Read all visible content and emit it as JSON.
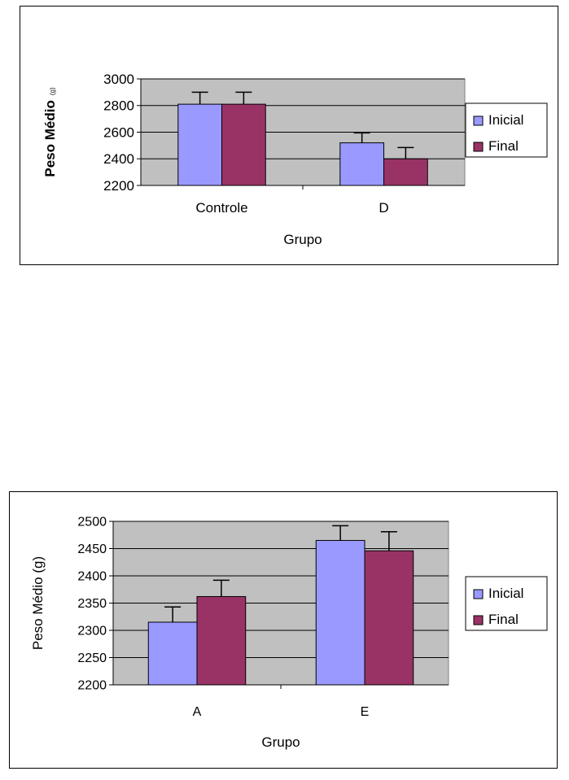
{
  "chart_data": [
    {
      "type": "bar",
      "title": "",
      "xlabel": "Grupo",
      "ylabel": "Peso Médio",
      "ylabel_unit": "(g)",
      "categories": [
        "Controle",
        "D"
      ],
      "series": [
        {
          "name": "Inicial",
          "color": "#9999ff",
          "values": [
            2810,
            2520
          ],
          "errors": [
            90,
            75
          ]
        },
        {
          "name": "Final",
          "color": "#993366",
          "values": [
            2810,
            2400
          ],
          "errors": [
            90,
            85
          ]
        }
      ],
      "ylim": [
        2200,
        3000
      ],
      "yticks": [
        2200,
        2400,
        2600,
        2800,
        3000
      ],
      "grid": true,
      "plot_bg": "#c0c0c0",
      "legend": "right"
    },
    {
      "type": "bar",
      "title": "",
      "xlabel": "Grupo",
      "ylabel": "Peso Médio (g)",
      "categories": [
        "A",
        "E"
      ],
      "series": [
        {
          "name": "Inicial",
          "color": "#9999ff",
          "values": [
            2315,
            2465
          ],
          "errors": [
            28,
            27
          ]
        },
        {
          "name": "Final",
          "color": "#993366",
          "values": [
            2362,
            2446
          ],
          "errors": [
            30,
            35
          ]
        }
      ],
      "ylim": [
        2200,
        2500
      ],
      "yticks": [
        2200,
        2250,
        2300,
        2350,
        2400,
        2450,
        2500
      ],
      "grid": true,
      "plot_bg": "#c0c0c0",
      "legend": "right"
    }
  ]
}
